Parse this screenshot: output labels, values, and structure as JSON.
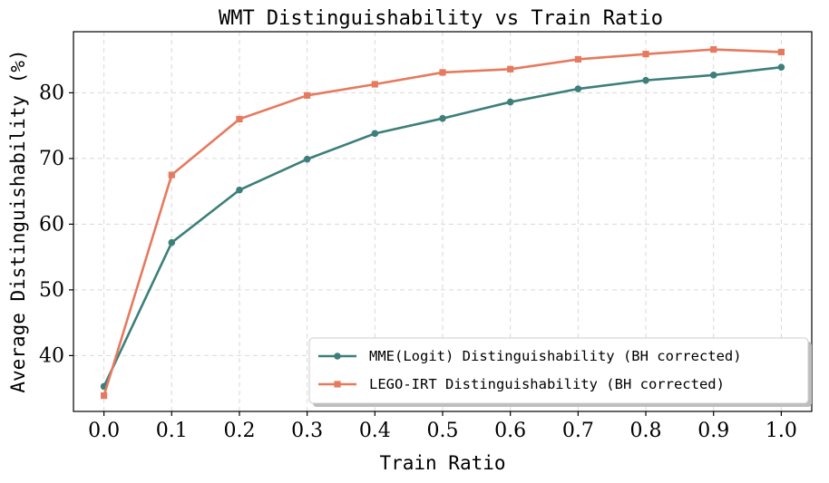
{
  "chart_data": {
    "type": "line",
    "title": "WMT Distinguishability vs Train Ratio",
    "xlabel": "Train Ratio",
    "ylabel": "Average Distinguishability (%)",
    "x": [
      0.0,
      0.1,
      0.2,
      0.3,
      0.4,
      0.5,
      0.6,
      0.7,
      0.8,
      0.9,
      1.0
    ],
    "x_tick_labels": [
      "0.0",
      "0.1",
      "0.2",
      "0.3",
      "0.4",
      "0.5",
      "0.6",
      "0.7",
      "0.8",
      "0.9",
      "1.0"
    ],
    "y_ticks": [
      40,
      50,
      60,
      70,
      80
    ],
    "y_tick_labels": [
      "40",
      "50",
      "60",
      "70",
      "80"
    ],
    "xlim": [
      -0.045,
      1.045
    ],
    "ylim": [
      31.5,
      89.3
    ],
    "grid": true,
    "legend_position": "bottom-right",
    "series": [
      {
        "name": "MME(Logit) Distinguishability (BH corrected)",
        "color": "#3d7f7b",
        "marker": "circle",
        "values": [
          35.3,
          57.2,
          65.2,
          69.9,
          73.8,
          76.1,
          78.6,
          80.6,
          81.9,
          82.7,
          83.9
        ]
      },
      {
        "name": "LEGO-IRT Distinguishability (BH corrected)",
        "color": "#e57a5f",
        "marker": "square",
        "values": [
          33.9,
          67.5,
          76.0,
          79.6,
          81.3,
          83.1,
          83.6,
          85.1,
          85.9,
          86.6,
          86.2
        ]
      }
    ]
  }
}
